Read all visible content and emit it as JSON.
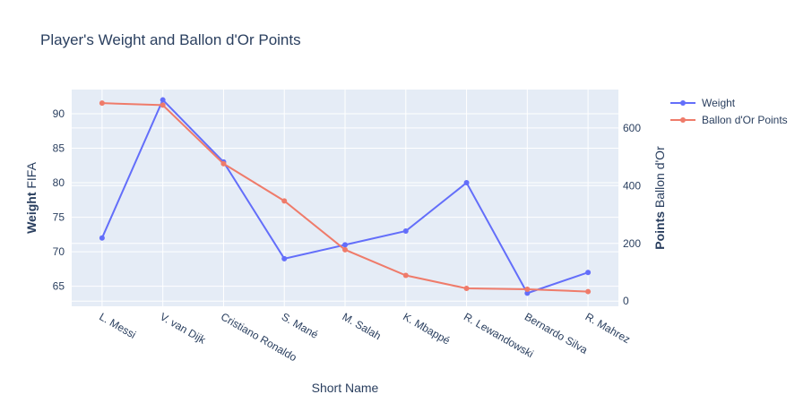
{
  "chart_data": {
    "type": "line",
    "title": "Player's Weight and Ballon d'Or Points",
    "xlabel": "Short Name",
    "ylabel_left": {
      "bold": "Weight",
      "rest": "FIFA"
    },
    "ylabel_right": {
      "bold": "Points",
      "rest": "Ballon d'Or"
    },
    "categories": [
      "L. Messi",
      "V. van Dijk",
      "Cristiano Ronaldo",
      "S. Mané",
      "M. Salah",
      "K. Mbappé",
      "R. Lewandowski",
      "Bernardo Silva",
      "R. Mahrez"
    ],
    "y_left": {
      "range": [
        62.1,
        93.5
      ],
      "ticks": [
        65,
        70,
        75,
        80,
        85,
        90
      ]
    },
    "y_right": {
      "range": [
        -18,
        733
      ],
      "ticks": [
        0,
        200,
        400,
        600
      ]
    },
    "series": [
      {
        "name": "Weight",
        "axis": "left",
        "color": "#636efa",
        "values": [
          72,
          92,
          83,
          69,
          71,
          73,
          80,
          64,
          67
        ]
      },
      {
        "name": "Ballon d'Or Points",
        "axis": "right",
        "color": "#ef7b6a",
        "values": [
          686,
          679,
          476,
          347,
          178,
          89,
          44,
          41,
          33
        ]
      }
    ],
    "grid": true,
    "legend_position": "top-right"
  }
}
